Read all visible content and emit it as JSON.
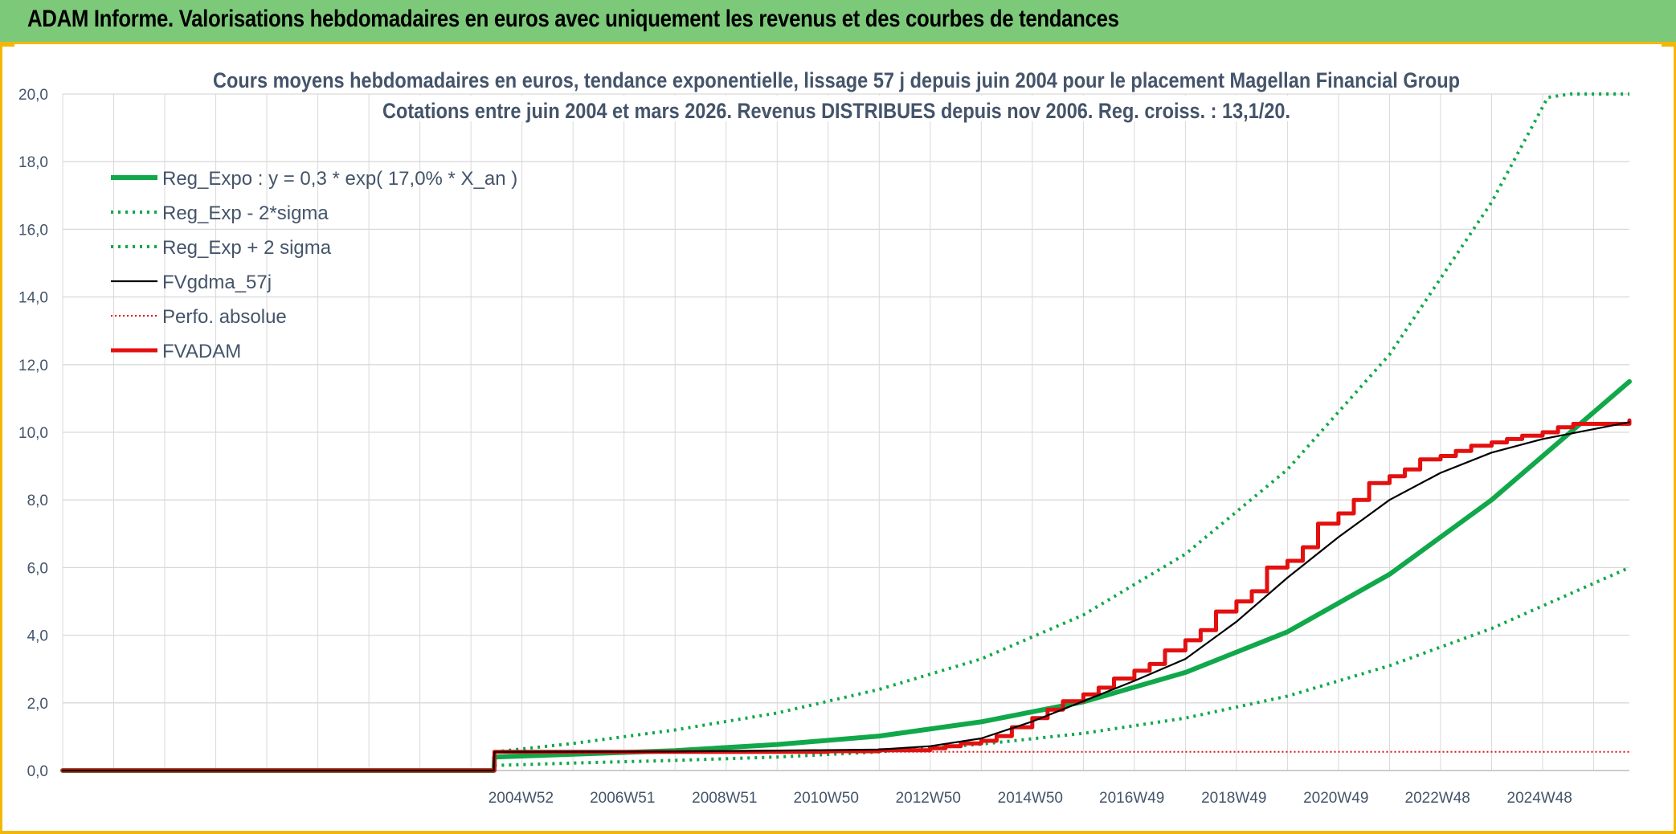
{
  "banner": {
    "title": "ADAM Informe. Valorisations hebdomadaires en euros avec uniquement les revenus et des courbes de tendances"
  },
  "colors": {
    "banner_bg": "#7dc97a",
    "frame": "#f2b705",
    "trend_green": "#10a84a",
    "fvadam_red": "#e31010",
    "fvgdma_black": "#000000",
    "grid": "#d9d9d9",
    "text": "#44546a"
  },
  "chart_data": {
    "type": "line",
    "title_line1": "Cours moyens hebdomadaires en euros, tendance exponentielle, lissage 57 j depuis juin 2004 pour le placement Magellan Financial Group",
    "title_line2": "Cotations entre juin 2004 et mars 2026. Revenus DISTRIBUES depuis nov 2006. Reg. croiss. : 13,1/20.",
    "xlabel": "",
    "ylabel": "",
    "ylim": [
      0,
      20
    ],
    "yticks": [
      "0,0",
      "2,0",
      "4,0",
      "6,0",
      "8,0",
      "10,0",
      "12,0",
      "14,0",
      "16,0",
      "18,0",
      "20,0"
    ],
    "xlim": [
      1996.0,
      2026.7
    ],
    "xtick_labels": [
      {
        "x": 2004.98,
        "label": "2004W52"
      },
      {
        "x": 2006.97,
        "label": "2006W51"
      },
      {
        "x": 2008.97,
        "label": "2008W51"
      },
      {
        "x": 2010.96,
        "label": "2010W50"
      },
      {
        "x": 2012.96,
        "label": "2012W50"
      },
      {
        "x": 2014.96,
        "label": "2014W50"
      },
      {
        "x": 2016.95,
        "label": "2016W49"
      },
      {
        "x": 2018.95,
        "label": "2018W49"
      },
      {
        "x": 2020.95,
        "label": "2020W49"
      },
      {
        "x": 2022.94,
        "label": "2022W48"
      },
      {
        "x": 2024.94,
        "label": "2024W48"
      }
    ],
    "legend_position": "top-left",
    "series": [
      {
        "name": "Reg_Expo : y = 0,3 * exp( 17,0% *  X_an )",
        "style": "solid-thick",
        "color": "#10a84a",
        "x": [
          1996.0,
          2004.45,
          2004.46,
          2006,
          2008,
          2010,
          2012,
          2014,
          2016,
          2018,
          2020,
          2022,
          2024,
          2026.7
        ],
        "y": [
          0,
          0,
          0.4,
          0.48,
          0.59,
          0.77,
          1.02,
          1.44,
          2.03,
          2.9,
          4.1,
          5.8,
          8.0,
          11.5
        ]
      },
      {
        "name": "Reg_Exp - 2*sigma",
        "style": "dotted",
        "color": "#10a84a",
        "x": [
          2004.46,
          2006,
          2008,
          2010,
          2012,
          2014,
          2016,
          2018,
          2020,
          2022,
          2024,
          2026.7
        ],
        "y": [
          0.15,
          0.22,
          0.3,
          0.4,
          0.55,
          0.78,
          1.1,
          1.55,
          2.2,
          3.1,
          4.2,
          6.0
        ]
      },
      {
        "name": "Reg_Exp + 2 sigma",
        "style": "dotted",
        "color": "#10a84a",
        "x": [
          2004.46,
          2006,
          2008,
          2010,
          2012,
          2014,
          2016,
          2018,
          2020,
          2022,
          2024,
          2025.1,
          2025.55,
          2026.7
        ],
        "y": [
          0.55,
          0.8,
          1.2,
          1.7,
          2.4,
          3.3,
          4.6,
          6.4,
          8.9,
          12.3,
          16.8,
          19.9,
          20.0,
          20.0
        ]
      },
      {
        "name": "FVgdma_57j",
        "style": "solid-thin",
        "color": "#000000",
        "x": [
          1996.0,
          2004.45,
          2004.46,
          2008,
          2012,
          2013,
          2014,
          2015,
          2016,
          2017,
          2018,
          2019,
          2020,
          2021,
          2022,
          2023,
          2024,
          2025,
          2026.7
        ],
        "y": [
          0,
          0,
          0.55,
          0.56,
          0.62,
          0.72,
          0.95,
          1.45,
          2.05,
          2.65,
          3.3,
          4.4,
          5.7,
          6.9,
          8.0,
          8.8,
          9.4,
          9.8,
          10.3
        ]
      },
      {
        "name": "Perfo. absolue",
        "style": "dotted-thin",
        "color": "#e31010",
        "x": [
          1996.0,
          2004.45,
          2004.46,
          2026.7
        ],
        "y": [
          0,
          0,
          0.55,
          0.55
        ]
      },
      {
        "name": "FVADAM",
        "style": "step-thick",
        "color": "#e31010",
        "x": [
          1996.0,
          2004.45,
          2004.46,
          2008,
          2011,
          2012,
          2013,
          2013.3,
          2013.6,
          2014,
          2014.3,
          2014.6,
          2015,
          2015.3,
          2015.6,
          2016,
          2016.3,
          2016.6,
          2017,
          2017.3,
          2017.6,
          2018,
          2018.3,
          2018.6,
          2019,
          2019.3,
          2019.6,
          2020,
          2020.3,
          2020.6,
          2021,
          2021.3,
          2021.6,
          2022,
          2022.3,
          2022.6,
          2023,
          2023.3,
          2023.6,
          2024,
          2024.3,
          2024.6,
          2025,
          2025.3,
          2025.6,
          2026.7
        ],
        "y": [
          0,
          0,
          0.55,
          0.55,
          0.57,
          0.6,
          0.66,
          0.72,
          0.8,
          0.88,
          1.02,
          1.28,
          1.55,
          1.8,
          2.05,
          2.25,
          2.45,
          2.72,
          2.95,
          3.15,
          3.55,
          3.85,
          4.15,
          4.7,
          5.0,
          5.3,
          6.0,
          6.2,
          6.6,
          7.3,
          7.6,
          8.0,
          8.5,
          8.7,
          8.9,
          9.2,
          9.3,
          9.45,
          9.6,
          9.7,
          9.8,
          9.9,
          10.0,
          10.15,
          10.25,
          10.35
        ]
      }
    ]
  }
}
